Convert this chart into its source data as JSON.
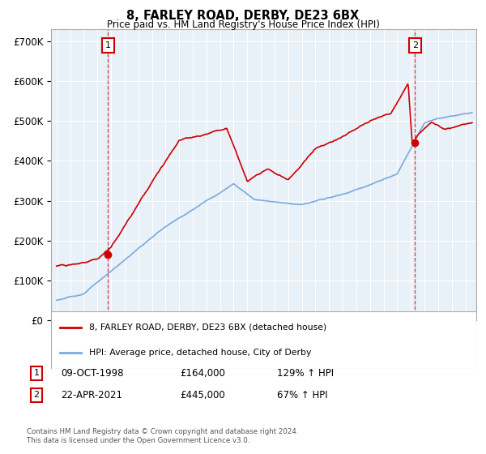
{
  "title": "8, FARLEY ROAD, DERBY, DE23 6BX",
  "subtitle": "Price paid vs. HM Land Registry's House Price Index (HPI)",
  "legend_line1": "8, FARLEY ROAD, DERBY, DE23 6BX (detached house)",
  "legend_line2": "HPI: Average price, detached house, City of Derby",
  "footnote": "Contains HM Land Registry data © Crown copyright and database right 2024.\nThis data is licensed under the Open Government Licence v3.0.",
  "sale1_date": "09-OCT-1998",
  "sale1_price": 164000,
  "sale1_label": "129% ↑ HPI",
  "sale2_date": "22-APR-2021",
  "sale2_price": 445000,
  "sale2_label": "67% ↑ HPI",
  "sale1_year": 1998.77,
  "sale2_year": 2021.3,
  "red_color": "#cc0000",
  "blue_color": "#7aaadd",
  "vline_color": "#cc0000",
  "background_color": "#e8f0f8",
  "plot_bg_color": "#e8f0f8",
  "grid_color": "#ffffff",
  "ylim": [
    0,
    730000
  ],
  "xlim_start": 1994.6,
  "xlim_end": 2025.8
}
